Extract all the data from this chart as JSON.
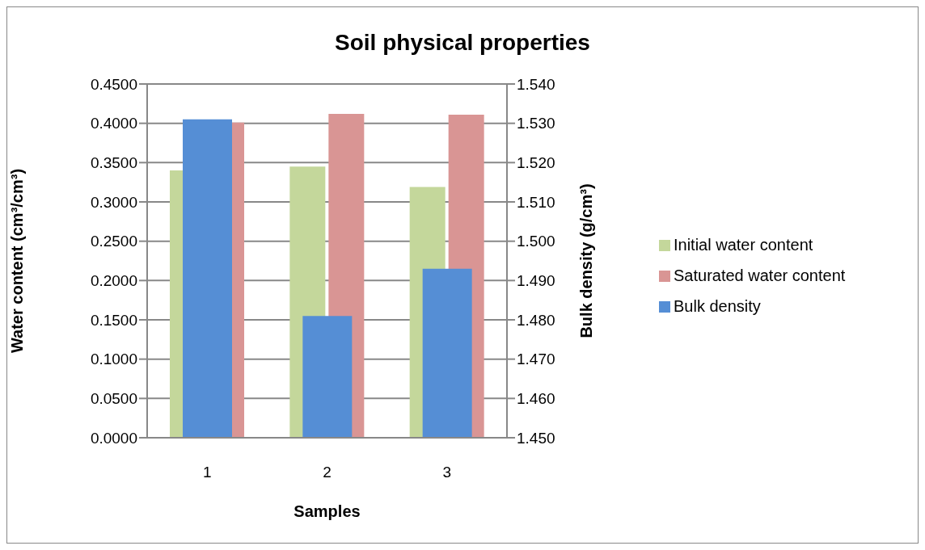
{
  "chart_data": {
    "type": "bar",
    "title": "Soil physical properties",
    "xlabel": "Samples",
    "ylabel": "Water content (cm³/cm³)",
    "y2label": "Bulk density (g/cm³)",
    "categories": [
      "1",
      "2",
      "3"
    ],
    "series": [
      {
        "name": "Initial water content",
        "color": "#c4d79b",
        "values": [
          0.34,
          0.345,
          0.319
        ]
      },
      {
        "name": "Saturated water content",
        "color": "#d99594",
        "values": [
          0.401,
          0.412,
          0.411
        ]
      },
      {
        "name": "Bulk density",
        "color": "#558ed5",
        "values": [
          1.531,
          1.481,
          1.493
        ],
        "axis": "y2"
      }
    ],
    "ylim": [
      0,
      0.45
    ],
    "yticks": [
      {
        "value": 0,
        "label": "0.0000"
      },
      {
        "value": 0.05,
        "label": "0.0500"
      },
      {
        "value": 0.1,
        "label": "0.1000"
      },
      {
        "value": 0.15,
        "label": "0.1500"
      },
      {
        "value": 0.2,
        "label": "0.2000"
      },
      {
        "value": 0.25,
        "label": "0.2500"
      },
      {
        "value": 0.3,
        "label": "0.3000"
      },
      {
        "value": 0.35,
        "label": "0.3500"
      },
      {
        "value": 0.4,
        "label": "0.4000"
      },
      {
        "value": 0.45,
        "label": "0.4500"
      }
    ],
    "y2lim": [
      1.45,
      1.54
    ],
    "y2ticks": [
      {
        "value": 1.45,
        "label": "1.450"
      },
      {
        "value": 1.46,
        "label": "1.460"
      },
      {
        "value": 1.47,
        "label": "1.470"
      },
      {
        "value": 1.48,
        "label": "1.480"
      },
      {
        "value": 1.49,
        "label": "1.490"
      },
      {
        "value": 1.5,
        "label": "1.500"
      },
      {
        "value": 1.51,
        "label": "1.510"
      },
      {
        "value": 1.52,
        "label": "1.520"
      },
      {
        "value": 1.53,
        "label": "1.530"
      },
      {
        "value": 1.54,
        "label": "1.540"
      }
    ],
    "grid": "y",
    "legend": "right"
  }
}
